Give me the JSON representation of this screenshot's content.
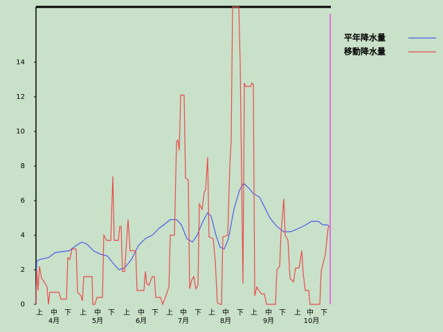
{
  "chart_data": {
    "type": "line",
    "xlim": [
      0,
      213
    ],
    "ylim": [
      0,
      17.2
    ],
    "yticks": [
      0,
      2,
      4,
      6,
      8,
      10,
      12,
      14
    ],
    "xticks": [
      {
        "value": 2.5,
        "label": "上"
      },
      {
        "value": 13,
        "label": "中"
      },
      {
        "value": 23,
        "label": "下"
      },
      {
        "value": 34,
        "label": "上"
      },
      {
        "value": 44.5,
        "label": "中"
      },
      {
        "value": 54.5,
        "label": "下"
      },
      {
        "value": 65.5,
        "label": "上"
      },
      {
        "value": 76,
        "label": "中"
      },
      {
        "value": 86,
        "label": "下"
      },
      {
        "value": 96.5,
        "label": "上"
      },
      {
        "value": 106.5,
        "label": "中"
      },
      {
        "value": 117,
        "label": "下"
      },
      {
        "value": 127,
        "label": "上"
      },
      {
        "value": 137,
        "label": "中"
      },
      {
        "value": 147.5,
        "label": "下"
      },
      {
        "value": 157.5,
        "label": "上"
      },
      {
        "value": 168,
        "label": "中"
      },
      {
        "value": 178,
        "label": "下"
      },
      {
        "value": 189,
        "label": "上"
      },
      {
        "value": 198,
        "label": "中"
      },
      {
        "value": 208,
        "label": "下"
      }
    ],
    "month_ticks": [
      {
        "value": 13,
        "label": "4月"
      },
      {
        "value": 44.5,
        "label": "5月"
      },
      {
        "value": 76,
        "label": "6月"
      },
      {
        "value": 106.5,
        "label": "7月"
      },
      {
        "value": 137,
        "label": "8月"
      },
      {
        "value": 168,
        "label": "9月"
      },
      {
        "value": 199,
        "label": "10月"
      }
    ],
    "marker_x": 212.5,
    "marker_color": "#e070e0",
    "legend": "top-right",
    "series": [
      {
        "name": "平年降水量",
        "color": "#4a5ae8",
        "x": [
          0,
          0.5,
          3,
          9,
          14,
          24,
          29,
          33,
          36.5,
          41.5,
          46.5,
          51.5,
          56.5,
          60,
          64,
          69,
          74,
          79,
          84,
          89,
          94,
          97,
          101.5,
          105,
          109,
          113,
          116.5,
          120,
          124,
          126.5,
          130,
          133,
          136,
          139,
          143,
          147,
          150,
          154,
          157,
          161.5,
          164,
          169,
          174,
          179,
          184,
          190,
          195,
          199,
          204,
          207,
          210,
          212.5
        ],
        "values": [
          0,
          2.5,
          2.6,
          2.7,
          3.0,
          3.1,
          3.4,
          3.6,
          3.5,
          3.1,
          2.9,
          2.8,
          2.3,
          2.0,
          2.1,
          2.6,
          3.4,
          3.8,
          4.0,
          4.4,
          4.7,
          4.9,
          4.9,
          4.6,
          3.8,
          3.6,
          4.0,
          4.7,
          5.3,
          5.1,
          4.0,
          3.3,
          3.2,
          3.8,
          5.5,
          6.6,
          7.0,
          6.7,
          6.4,
          6.2,
          5.8,
          5.0,
          4.5,
          4.2,
          4.2,
          4.4,
          4.6,
          4.8,
          4.8,
          4.6,
          4.6,
          4.5
        ]
      },
      {
        "name": "移動降水量",
        "color": "#e84a4a",
        "x": [
          0,
          0.5,
          1.5,
          2.5,
          4,
          6,
          8,
          9,
          10,
          16.5,
          18,
          22,
          23,
          24.5,
          26,
          29,
          30,
          32.5,
          33.5,
          34.5,
          40.5,
          41,
          42.5,
          44,
          48,
          49,
          51,
          54,
          55.5,
          56.5,
          59.5,
          60.5,
          61.5,
          62.5,
          64,
          66.5,
          68,
          72,
          73,
          78,
          79,
          80,
          81.5,
          84,
          85.5,
          86.5,
          90,
          91.5,
          93,
          96,
          97,
          100,
          101.5,
          102.5,
          103.5,
          104.5,
          107,
          108,
          110,
          111,
          112.5,
          114,
          115.5,
          117,
          118,
          120,
          121.5,
          122.5,
          124,
          125,
          128,
          129.5,
          131,
          133,
          134,
          135,
          138.5,
          140,
          141,
          142,
          146.5,
          147.5,
          149.5,
          150.5,
          151.5,
          155,
          156,
          157,
          158,
          159.5,
          161,
          163,
          165,
          166.5,
          173,
          174,
          176,
          177,
          179,
          180,
          182,
          183.5,
          186,
          187.5,
          190,
          192,
          193,
          194.5,
          197,
          198,
          205,
          206,
          207.5,
          209,
          211,
          212.5
        ],
        "values": [
          0,
          2.0,
          0.8,
          2.2,
          1.5,
          1.3,
          1.0,
          0,
          0.7,
          0.7,
          0.3,
          0.3,
          2.7,
          2.6,
          3.2,
          3.2,
          0.7,
          0.5,
          0.2,
          1.6,
          1.6,
          0,
          0,
          0.4,
          0.4,
          4.0,
          3.7,
          3.7,
          7.4,
          3.7,
          3.7,
          4.5,
          4.5,
          1.9,
          1.9,
          4.9,
          3.1,
          3.1,
          0.8,
          0.8,
          1.9,
          1.2,
          1.1,
          1.6,
          1.6,
          0.4,
          0.4,
          0,
          0.3,
          1.0,
          4.0,
          4.0,
          9.4,
          9.5,
          8.9,
          12.1,
          12.1,
          7.3,
          7.2,
          0.9,
          1.4,
          1.6,
          0.9,
          1.1,
          5.8,
          5.5,
          6.5,
          6.6,
          8.5,
          3.9,
          3.8,
          2.5,
          0.1,
          0,
          0,
          3.9,
          4.0,
          8.0,
          9.5,
          17.2,
          17.2,
          14.0,
          1.2,
          12.8,
          12.6,
          12.6,
          12.8,
          12.7,
          0.5,
          1.0,
          0.8,
          0.6,
          0.6,
          0,
          0,
          2.0,
          2.2,
          4.1,
          6.1,
          4.0,
          3.7,
          1.5,
          1.3,
          2.1,
          2.1,
          3.1,
          1.8,
          0.8,
          0.8,
          0,
          0,
          1.9,
          2.4,
          2.9,
          4.4,
          4.6
        ]
      }
    ]
  }
}
